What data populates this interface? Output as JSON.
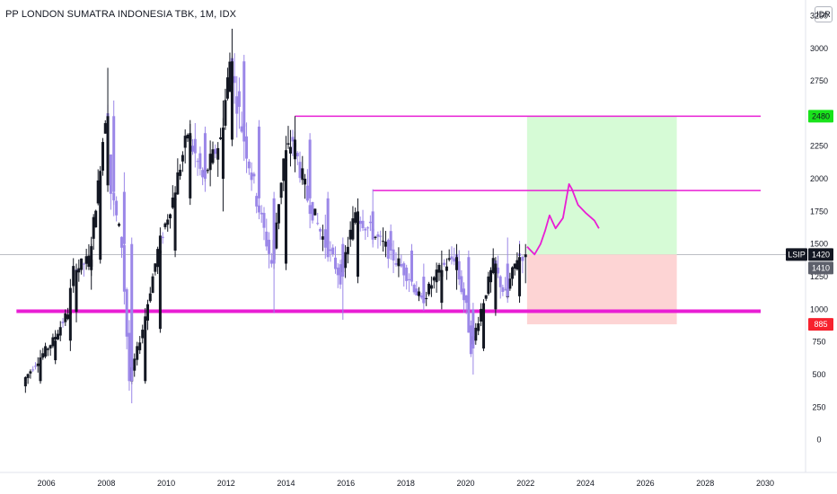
{
  "header": {
    "title": "PP LONDON SUMATRA INDONESIA TBK, 1M, IDX",
    "currency": "IDR"
  },
  "price_tags": {
    "symbol": "LSIP",
    "last": "1420",
    "current": "1410",
    "target": "2480",
    "stop": "885"
  },
  "colors": {
    "up": "#131722",
    "down": "#9b87e8",
    "line": "#e91ed4",
    "target_zone": "#d6fbd6",
    "stop_zone": "#fdd4d4",
    "target_tag": "#19e31b",
    "stop_tag": "#f7222e"
  },
  "chart_data": {
    "type": "candlestick",
    "timeframe": "1M",
    "x_ticks": [
      "2006",
      "2008",
      "2010",
      "2012",
      "2014",
      "2016",
      "2018",
      "2020",
      "2022",
      "2024",
      "2026",
      "2028",
      "2030"
    ],
    "y_ticks": [
      "0",
      "250",
      "500",
      "750",
      "1000",
      "1250",
      "1500",
      "1750",
      "2000",
      "2250",
      "2500",
      "2750",
      "3000",
      "3250"
    ],
    "ylim": [
      -250,
      3370
    ],
    "xlim": [
      2004.45,
      2031.35
    ],
    "last_price": 1420,
    "ohlc_monthly_approx": [
      {
        "t": 2005.3,
        "o": 410,
        "h": 480,
        "l": 360,
        "c": 450
      },
      {
        "t": 2005.8,
        "o": 450,
        "h": 640,
        "l": 430,
        "c": 610
      },
      {
        "t": 2006.3,
        "o": 610,
        "h": 820,
        "l": 580,
        "c": 760
      },
      {
        "t": 2006.8,
        "o": 760,
        "h": 1000,
        "l": 680,
        "c": 980
      },
      {
        "t": 2007.0,
        "o": 980,
        "h": 1350,
        "l": 900,
        "c": 1300
      },
      {
        "t": 2007.5,
        "o": 1300,
        "h": 1500,
        "l": 1150,
        "c": 1380
      },
      {
        "t": 2007.8,
        "o": 1380,
        "h": 2000,
        "l": 1350,
        "c": 1950
      },
      {
        "t": 2008.05,
        "o": 1950,
        "h": 2850,
        "l": 1900,
        "c": 2480
      },
      {
        "t": 2008.25,
        "o": 2480,
        "h": 2600,
        "l": 1800,
        "c": 1900
      },
      {
        "t": 2008.6,
        "o": 1900,
        "h": 2050,
        "l": 1400,
        "c": 1500
      },
      {
        "t": 2008.85,
        "o": 1500,
        "h": 1550,
        "l": 280,
        "c": 450
      },
      {
        "t": 2009.3,
        "o": 450,
        "h": 900,
        "l": 430,
        "c": 850
      },
      {
        "t": 2009.8,
        "o": 850,
        "h": 1500,
        "l": 820,
        "c": 1450
      },
      {
        "t": 2010.3,
        "o": 1450,
        "h": 1900,
        "l": 1400,
        "c": 1850
      },
      {
        "t": 2010.8,
        "o": 1850,
        "h": 2450,
        "l": 1800,
        "c": 2350
      },
      {
        "t": 2011.3,
        "o": 2350,
        "h": 2400,
        "l": 1900,
        "c": 2000
      },
      {
        "t": 2011.9,
        "o": 2000,
        "h": 2600,
        "l": 1750,
        "c": 2300
      },
      {
        "t": 2012.2,
        "o": 2300,
        "h": 3150,
        "l": 2250,
        "c": 2900
      },
      {
        "t": 2012.6,
        "o": 2900,
        "h": 2950,
        "l": 2300,
        "c": 2400
      },
      {
        "t": 2013.1,
        "o": 2400,
        "h": 2450,
        "l": 1750,
        "c": 1850
      },
      {
        "t": 2013.6,
        "o": 1850,
        "h": 1900,
        "l": 970,
        "c": 1350
      },
      {
        "t": 2014.0,
        "o": 1350,
        "h": 2200,
        "l": 1300,
        "c": 2150
      },
      {
        "t": 2014.3,
        "o": 2150,
        "h": 2480,
        "l": 2050,
        "c": 2300
      },
      {
        "t": 2014.8,
        "o": 2300,
        "h": 2350,
        "l": 1750,
        "c": 1850
      },
      {
        "t": 2015.4,
        "o": 1850,
        "h": 1900,
        "l": 1400,
        "c": 1500
      },
      {
        "t": 2015.9,
        "o": 1500,
        "h": 1550,
        "l": 920,
        "c": 1250
      },
      {
        "t": 2016.4,
        "o": 1250,
        "h": 1850,
        "l": 1200,
        "c": 1750
      },
      {
        "t": 2016.9,
        "o": 1750,
        "h": 1920,
        "l": 1500,
        "c": 1600
      },
      {
        "t": 2017.5,
        "o": 1600,
        "h": 1650,
        "l": 1380,
        "c": 1450
      },
      {
        "t": 2018.2,
        "o": 1450,
        "h": 1500,
        "l": 1200,
        "c": 1250
      },
      {
        "t": 2018.6,
        "o": 1250,
        "h": 1350,
        "l": 990,
        "c": 1050
      },
      {
        "t": 2019.2,
        "o": 1050,
        "h": 1450,
        "l": 1000,
        "c": 1300
      },
      {
        "t": 2019.7,
        "o": 1300,
        "h": 1500,
        "l": 1150,
        "c": 1400
      },
      {
        "t": 2020.1,
        "o": 1400,
        "h": 1450,
        "l": 950,
        "c": 1000
      },
      {
        "t": 2020.25,
        "o": 1000,
        "h": 1050,
        "l": 500,
        "c": 700
      },
      {
        "t": 2020.6,
        "o": 700,
        "h": 1050,
        "l": 680,
        "c": 1000
      },
      {
        "t": 2021.0,
        "o": 1000,
        "h": 1400,
        "l": 950,
        "c": 1350
      },
      {
        "t": 2021.4,
        "o": 1350,
        "h": 1550,
        "l": 1050,
        "c": 1100
      },
      {
        "t": 2021.8,
        "o": 1100,
        "h": 1500,
        "l": 1050,
        "c": 1400
      },
      {
        "t": 2022.0,
        "o": 1400,
        "h": 1500,
        "l": 1200,
        "c": 1420
      }
    ],
    "horizontal_levels": [
      2480,
      1910,
      985
    ],
    "target": 2480,
    "stop": 885,
    "entry": 1420,
    "projection_path": [
      [
        2022.05,
        1480
      ],
      [
        2022.3,
        1420
      ],
      [
        2022.5,
        1500
      ],
      [
        2022.65,
        1600
      ],
      [
        2022.8,
        1720
      ],
      [
        2023.0,
        1620
      ],
      [
        2023.25,
        1700
      ],
      [
        2023.45,
        1960
      ],
      [
        2023.55,
        1920
      ],
      [
        2023.75,
        1800
      ],
      [
        2024.0,
        1740
      ],
      [
        2024.3,
        1680
      ],
      [
        2024.45,
        1620
      ]
    ]
  }
}
